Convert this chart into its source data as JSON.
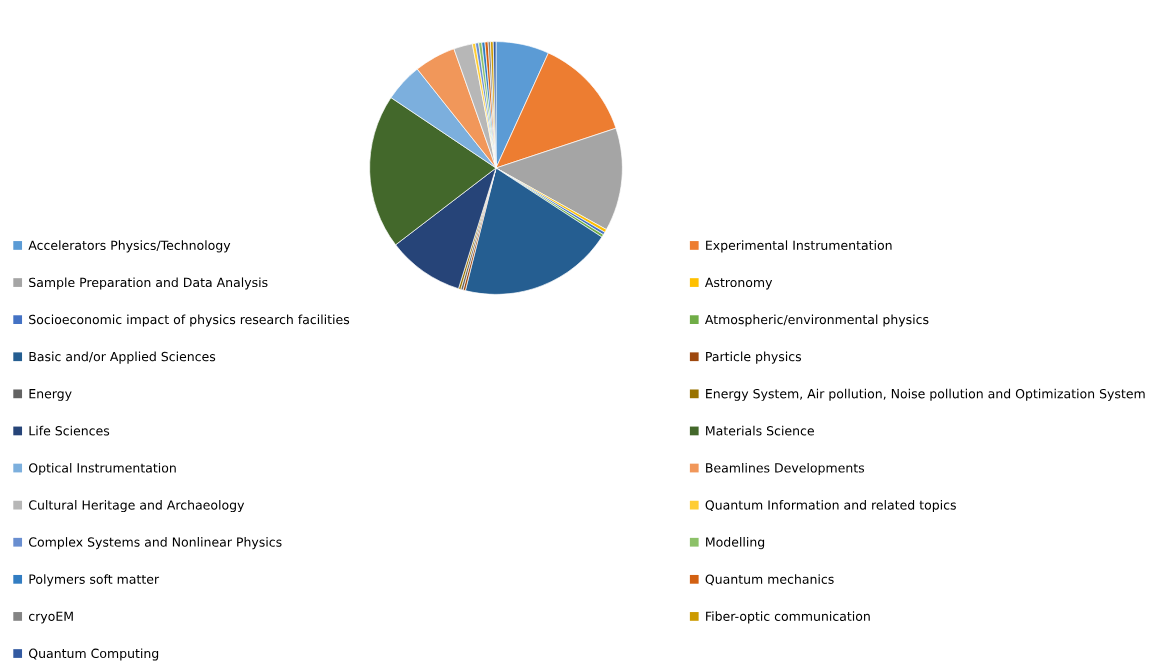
{
  "chart_data": {
    "type": "pie",
    "legend": "bottom",
    "categories": [
      "Accelerators Physics/Technology",
      "Experimental Instrumentation",
      "Sample Preparation and Data Analysis",
      "Astronomy",
      "Socioeconomic impact of physics research facilities",
      "Atmospheric/environmental physics",
      "Basic and/or Applied Sciences",
      "Particle physics",
      "Energy",
      "Energy System, Air pollution, Noise pollution and Optimization System",
      "Life Sciences",
      "Materials Science",
      "Optical Instrumentation",
      "Beamlines Developments",
      "Cultural Heritage and Archaeology",
      "Quantum Information and related topics",
      "Complex Systems and Nonlinear Physics",
      "Modelling",
      "Polymers soft matter",
      "Quantum mechanics",
      "cryoEM",
      "Fiber-optic communication",
      "Quantum Computing"
    ],
    "values": [
      6.8,
      13.1,
      13.2,
      0.4,
      0.35,
      0.35,
      19.7,
      0.3,
      0.3,
      0.3,
      9.8,
      19.8,
      4.9,
      5.3,
      2.4,
      0.4,
      0.4,
      0.4,
      0.4,
      0.4,
      0.3,
      0.35,
      0.35
    ],
    "colors": [
      "#5b9bd5",
      "#ed7d31",
      "#a5a5a5",
      "#ffc000",
      "#4472c4",
      "#70ad47",
      "#255e91",
      "#9e480e",
      "#636363",
      "#997300",
      "#264478",
      "#43682b",
      "#7cafdd",
      "#f1975a",
      "#b7b7b7",
      "#ffcd33",
      "#698ed0",
      "#8cc168",
      "#327dc2",
      "#d26012",
      "#848484",
      "#cc9a00",
      "#335aa1"
    ]
  }
}
